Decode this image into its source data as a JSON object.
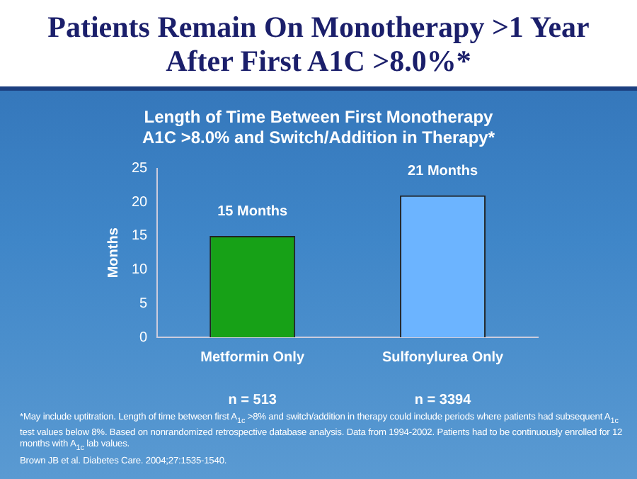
{
  "chart_data": {
    "type": "bar",
    "title": "Patients Remain On Monotherapy >1 Year After First A1C >8.0%*",
    "subtitle": "Length of Time Between First Monotherapy A1C >8.0% and Switch/Addition in Therapy*",
    "ylabel": "Months",
    "categories": [
      "Metformin Only",
      "Sulfonylurea Only"
    ],
    "values": [
      15,
      21
    ],
    "colors": [
      "#17a117",
      "#6cb4ff"
    ],
    "value_labels": [
      "15 Months",
      "21 Months"
    ],
    "ylim": [
      0,
      25
    ],
    "yticks": [
      0,
      5,
      10,
      15,
      20,
      25
    ],
    "grid": false,
    "annotations": [
      "n = 513",
      "n = 3394",
      "*May include uptitration.  Length of time between first A$_{1c}$ >8% and switch/addition in therapy could include periods where patients had subsequent A$_{1c}$ test values below 8%.  Based on nonrandomized retrospective database analysis. Data from 1994-2002. Patients had to be continuously enrolled for 12 months with A$_{1c}$ lab values.",
      "Brown JB et al. Diabetes Care. 2004;27:1535-1540."
    ]
  }
}
